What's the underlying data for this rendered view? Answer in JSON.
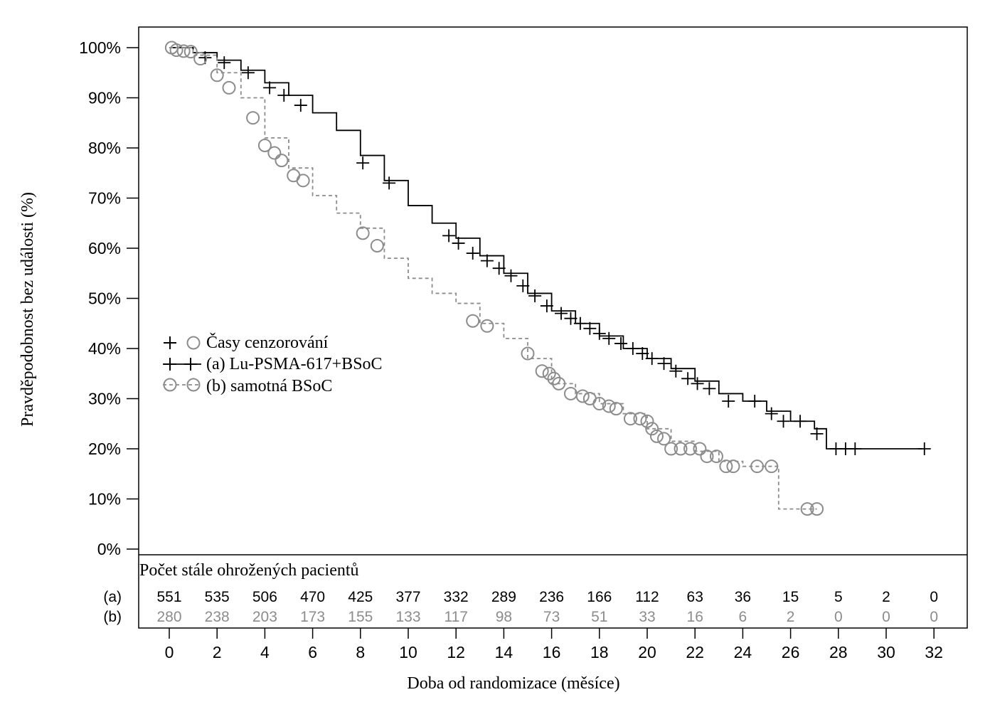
{
  "chart_data": {
    "type": "line",
    "subtype": "kaplan-meier",
    "ylabel": "Pravděpodobnost bez události (%)",
    "xlabel": "Doba od randomizace (měsíce)",
    "xlim": [
      0,
      32
    ],
    "ylim": [
      0,
      100
    ],
    "x_ticks": [
      0,
      2,
      4,
      6,
      8,
      10,
      12,
      14,
      16,
      18,
      20,
      22,
      24,
      26,
      28,
      30,
      32
    ],
    "y_ticks": [
      0,
      10,
      20,
      30,
      40,
      50,
      60,
      70,
      80,
      90,
      100
    ],
    "y_tick_labels": [
      "0%",
      "10%",
      "20%",
      "30%",
      "40%",
      "50%",
      "60%",
      "70%",
      "80%",
      "90%",
      "100%"
    ],
    "legend": {
      "placement": "center-left",
      "censor_label": "Časy cenzorování",
      "entries": [
        "(a) Lu-PSMA-617+BSoC",
        "(b) samotná BSoC"
      ]
    },
    "series": [
      {
        "name": "(a) Lu-PSMA-617+BSoC",
        "color": "#000000",
        "style": "solid",
        "censor_marker": "plus",
        "points": [
          [
            0,
            100
          ],
          [
            1,
            99
          ],
          [
            2,
            97.5
          ],
          [
            3,
            95.5
          ],
          [
            4,
            93
          ],
          [
            5,
            90.5
          ],
          [
            6,
            87
          ],
          [
            7,
            83.5
          ],
          [
            8,
            78.5
          ],
          [
            9,
            73.5
          ],
          [
            10,
            68.5
          ],
          [
            11,
            65
          ],
          [
            12,
            62
          ],
          [
            13,
            58.5
          ],
          [
            14,
            55
          ],
          [
            15,
            51
          ],
          [
            16,
            47.5
          ],
          [
            17,
            45
          ],
          [
            18,
            42.5
          ],
          [
            19,
            40
          ],
          [
            20,
            38
          ],
          [
            21,
            36
          ],
          [
            22,
            33.5
          ],
          [
            23,
            31
          ],
          [
            24,
            29.5
          ],
          [
            25,
            27.5
          ],
          [
            26,
            25.5
          ],
          [
            27,
            24
          ],
          [
            27.5,
            20
          ],
          [
            31.5,
            20
          ]
        ],
        "censor_times": [
          [
            1.5,
            98
          ],
          [
            2.3,
            97
          ],
          [
            3.3,
            95
          ],
          [
            4.2,
            92
          ],
          [
            4.8,
            90.5
          ],
          [
            5.5,
            88.5
          ],
          [
            8.1,
            77
          ],
          [
            9.2,
            73
          ],
          [
            11.7,
            62.5
          ],
          [
            12.1,
            61
          ],
          [
            12.7,
            59
          ],
          [
            13.3,
            57.5
          ],
          [
            13.8,
            56
          ],
          [
            14.3,
            54.5
          ],
          [
            14.8,
            52.5
          ],
          [
            15.3,
            50.5
          ],
          [
            15.8,
            48.5
          ],
          [
            16.4,
            47
          ],
          [
            16.8,
            46
          ],
          [
            17.2,
            45
          ],
          [
            17.6,
            44
          ],
          [
            18,
            43
          ],
          [
            18.4,
            42
          ],
          [
            18.9,
            41
          ],
          [
            19.4,
            40
          ],
          [
            19.8,
            39
          ],
          [
            20.2,
            38
          ],
          [
            20.7,
            37
          ],
          [
            21.2,
            35.5
          ],
          [
            21.7,
            34
          ],
          [
            22.1,
            33
          ],
          [
            22.6,
            32
          ],
          [
            23.4,
            29.5
          ],
          [
            24.5,
            29.5
          ],
          [
            25.2,
            27
          ],
          [
            25.7,
            25.5
          ],
          [
            26.4,
            25.5
          ],
          [
            27.1,
            23
          ],
          [
            27.9,
            20
          ],
          [
            28.3,
            20
          ],
          [
            28.7,
            20
          ],
          [
            31.6,
            20
          ]
        ]
      },
      {
        "name": "(b) samotná BSoC",
        "color": "#8c8c8c",
        "style": "dashed",
        "censor_marker": "circle",
        "points": [
          [
            0,
            100
          ],
          [
            1,
            98.5
          ],
          [
            2,
            95
          ],
          [
            3,
            90
          ],
          [
            4,
            82
          ],
          [
            5,
            76
          ],
          [
            6,
            70.5
          ],
          [
            7,
            67
          ],
          [
            8,
            64
          ],
          [
            9,
            58
          ],
          [
            10,
            54
          ],
          [
            11,
            51
          ],
          [
            12,
            49
          ],
          [
            13,
            45
          ],
          [
            14,
            42
          ],
          [
            15,
            38
          ],
          [
            16,
            33
          ],
          [
            17,
            31
          ],
          [
            18,
            29
          ],
          [
            19,
            27
          ],
          [
            20,
            24
          ],
          [
            21,
            21.5
          ],
          [
            22,
            19.5
          ],
          [
            23,
            17.5
          ],
          [
            24,
            16.5
          ],
          [
            25,
            16.5
          ],
          [
            25.5,
            8
          ],
          [
            27.1,
            8
          ]
        ],
        "censor_times": [
          [
            0.1,
            100
          ],
          [
            0.3,
            99.5
          ],
          [
            0.6,
            99.3
          ],
          [
            0.9,
            99.2
          ],
          [
            1.3,
            97.8
          ],
          [
            2,
            94.5
          ],
          [
            2.5,
            92
          ],
          [
            3.5,
            86
          ],
          [
            4,
            80.5
          ],
          [
            4.4,
            79
          ],
          [
            4.7,
            77.5
          ],
          [
            5.2,
            74.5
          ],
          [
            5.6,
            73.5
          ],
          [
            8.1,
            63
          ],
          [
            8.7,
            60.5
          ],
          [
            12.7,
            45.5
          ],
          [
            13.3,
            44.5
          ],
          [
            15,
            39
          ],
          [
            15.6,
            35.5
          ],
          [
            15.9,
            35
          ],
          [
            16.1,
            34
          ],
          [
            16.3,
            33
          ],
          [
            16.8,
            31
          ],
          [
            17.3,
            30.5
          ],
          [
            17.6,
            30
          ],
          [
            18,
            29
          ],
          [
            18.4,
            28.5
          ],
          [
            18.7,
            28
          ],
          [
            19.3,
            26
          ],
          [
            19.7,
            26
          ],
          [
            20,
            25.5
          ],
          [
            20.2,
            24
          ],
          [
            20.4,
            22.5
          ],
          [
            20.7,
            22
          ],
          [
            21,
            20
          ],
          [
            21.4,
            20
          ],
          [
            21.8,
            20
          ],
          [
            22.2,
            20
          ],
          [
            22.5,
            18.5
          ],
          [
            22.9,
            18.5
          ],
          [
            23.3,
            16.5
          ],
          [
            23.6,
            16.5
          ],
          [
            24.6,
            16.5
          ],
          [
            25.2,
            16.5
          ],
          [
            26.7,
            8
          ],
          [
            27.1,
            8
          ]
        ]
      }
    ],
    "risk_table": {
      "title": "Počet stále ohrožených pacientů",
      "times": [
        0,
        2,
        4,
        6,
        8,
        10,
        12,
        14,
        16,
        18,
        20,
        22,
        24,
        26,
        28,
        30,
        32
      ],
      "rows": [
        {
          "label": "(a)",
          "color": "#000000",
          "values": [
            "551",
            "535",
            "506",
            "470",
            "425",
            "377",
            "332",
            "289",
            "236",
            "166",
            "112",
            "63",
            "36",
            "15",
            "5",
            "2",
            "0"
          ]
        },
        {
          "label": "(b)",
          "color": "#8c8c8c",
          "values": [
            "280",
            "238",
            "203",
            "173",
            "155",
            "133",
            "117",
            "98",
            "73",
            "51",
            "33",
            "16",
            "6",
            "2",
            "0",
            "0",
            "0"
          ]
        }
      ]
    }
  }
}
